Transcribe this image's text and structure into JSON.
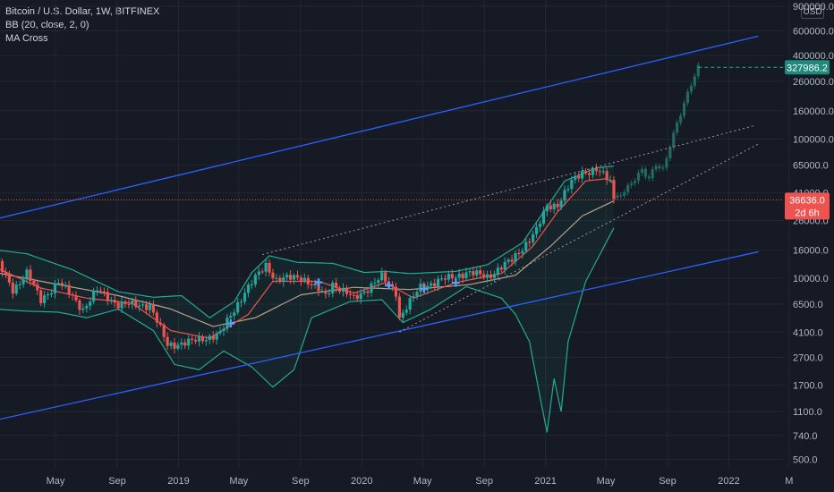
{
  "legend": {
    "symbol": "Bitcoin / U.S. Dollar, 1W, BITFINEX",
    "indicator1": "BB (20, close, 2, 0)",
    "indicator2": "MA Cross"
  },
  "currency_label": "USD",
  "colors": {
    "background": "#161a25",
    "up": "#26a69a",
    "down": "#ef5350",
    "bb": "#22ab94",
    "channel": "#2962ff",
    "ma_fast": "#ef5350",
    "ma_slow": "#b8a08a",
    "projection": "#1f6b62"
  },
  "chart_data": {
    "type": "candlestick",
    "scale": "log",
    "y_ticks": [
      "900000.0",
      "600000.0",
      "400000.0",
      "260000.0",
      "160000.0",
      "100000.0",
      "65000.0",
      "41000.0",
      "26000.0",
      "16000.0",
      "10000.0",
      "6500.0",
      "4100.0",
      "2700.0",
      "1700.0",
      "1100.0",
      "740.0",
      "500.0"
    ],
    "x_ticks": [
      "May",
      "Sep",
      "2019",
      "May",
      "Sep",
      "2020",
      "May",
      "Sep",
      "2021",
      "May",
      "Sep",
      "2022",
      "M"
    ],
    "ylim": [
      440,
      1000000
    ],
    "current_price": {
      "value": 36636.0,
      "label": "36636.0",
      "countdown": "2d 6h"
    },
    "projected_target": {
      "value": 327986.2,
      "label": "327986.2"
    },
    "anchors": [
      [
        "2018-01-01",
        14000
      ],
      [
        "2018-02-05",
        8200
      ],
      [
        "2018-03-05",
        11000
      ],
      [
        "2018-04-02",
        6900
      ],
      [
        "2018-05-07",
        9500
      ],
      [
        "2018-06-25",
        6000
      ],
      [
        "2018-07-23",
        8200
      ],
      [
        "2018-09-03",
        6500
      ],
      [
        "2018-11-05",
        6400
      ],
      [
        "2018-12-10",
        3300
      ],
      [
        "2019-01-28",
        3500
      ],
      [
        "2019-03-25",
        4000
      ],
      [
        "2019-05-13",
        8000
      ],
      [
        "2019-06-24",
        12500
      ],
      [
        "2019-07-15",
        9700
      ],
      [
        "2019-09-02",
        10300
      ],
      [
        "2019-10-21",
        7500
      ],
      [
        "2019-11-04",
        9200
      ],
      [
        "2019-12-16",
        7100
      ],
      [
        "2020-02-10",
        10200
      ],
      [
        "2020-03-09",
        8000
      ],
      [
        "2020-03-16",
        5200
      ],
      [
        "2020-04-27",
        8700
      ],
      [
        "2020-06-01",
        9500
      ],
      [
        "2020-07-27",
        11000
      ],
      [
        "2020-09-07",
        10300
      ],
      [
        "2020-10-26",
        13500
      ],
      [
        "2020-12-14",
        22000
      ],
      [
        "2021-01-04",
        33000
      ],
      [
        "2021-01-25",
        34000
      ],
      [
        "2021-02-22",
        49000
      ],
      [
        "2021-03-15",
        58000
      ],
      [
        "2021-04-12",
        60000
      ],
      [
        "2021-05-10",
        50000
      ],
      [
        "2021-05-17",
        37000
      ]
    ],
    "bb_upper": [
      [
        "2018-01-01",
        16000
      ],
      [
        "2018-03-05",
        15000
      ],
      [
        "2018-06-04",
        11500
      ],
      [
        "2018-09-03",
        8000
      ],
      [
        "2018-11-12",
        7300
      ],
      [
        "2019-01-07",
        7500
      ],
      [
        "2019-03-04",
        5200
      ],
      [
        "2019-04-22",
        6800
      ],
      [
        "2019-05-27",
        11000
      ],
      [
        "2019-07-01",
        14500
      ],
      [
        "2019-08-26",
        13000
      ],
      [
        "2019-11-04",
        12800
      ],
      [
        "2020-01-06",
        11000
      ],
      [
        "2020-02-17",
        11200
      ],
      [
        "2020-04-06",
        10800
      ],
      [
        "2020-07-06",
        11200
      ],
      [
        "2020-09-07",
        12500
      ],
      [
        "2020-11-16",
        18000
      ],
      [
        "2020-12-28",
        30000
      ],
      [
        "2021-02-08",
        50000
      ],
      [
        "2021-04-12",
        62000
      ],
      [
        "2021-05-17",
        64000
      ]
    ],
    "bb_lower": [
      [
        "2018-01-01",
        6000
      ],
      [
        "2018-03-05",
        5800
      ],
      [
        "2018-05-07",
        5700
      ],
      [
        "2018-07-02",
        5200
      ],
      [
        "2018-09-03",
        6000
      ],
      [
        "2018-11-12",
        4200
      ],
      [
        "2018-12-24",
        2400
      ],
      [
        "2019-02-11",
        2200
      ],
      [
        "2019-04-01",
        3000
      ],
      [
        "2019-05-27",
        2300
      ],
      [
        "2019-07-08",
        1650
      ],
      [
        "2019-08-19",
        2200
      ],
      [
        "2019-09-23",
        5200
      ],
      [
        "2019-12-09",
        6800
      ],
      [
        "2020-02-10",
        7000
      ],
      [
        "2020-03-23",
        4800
      ],
      [
        "2020-05-18",
        6000
      ],
      [
        "2020-07-27",
        8700
      ],
      [
        "2020-10-05",
        7200
      ],
      [
        "2020-11-02",
        5500
      ],
      [
        "2020-11-30",
        3500
      ],
      [
        "2020-12-21",
        1400
      ],
      [
        "2021-01-04",
        780
      ],
      [
        "2021-01-18",
        1900
      ],
      [
        "2021-02-01",
        1100
      ],
      [
        "2021-02-15",
        3500
      ],
      [
        "2021-03-22",
        9500
      ],
      [
        "2021-05-17",
        23000
      ]
    ],
    "ma_fast": [
      [
        "2018-01-01",
        12000
      ],
      [
        "2018-04-02",
        8500
      ],
      [
        "2018-07-02",
        7200
      ],
      [
        "2018-10-01",
        6600
      ],
      [
        "2018-12-17",
        4200
      ],
      [
        "2019-03-04",
        3700
      ],
      [
        "2019-05-20",
        5500
      ],
      [
        "2019-07-08",
        9500
      ],
      [
        "2019-10-07",
        9500
      ],
      [
        "2019-12-16",
        7800
      ],
      [
        "2020-02-17",
        9300
      ],
      [
        "2020-04-13",
        7200
      ],
      [
        "2020-07-06",
        9300
      ],
      [
        "2020-10-05",
        10800
      ],
      [
        "2020-12-07",
        17000
      ],
      [
        "2021-01-25",
        30000
      ],
      [
        "2021-03-22",
        50000
      ],
      [
        "2021-05-03",
        52000
      ],
      [
        "2021-05-17",
        48000
      ]
    ],
    "ma_slow": [
      [
        "2018-01-01",
        11000
      ],
      [
        "2018-05-07",
        9000
      ],
      [
        "2018-09-03",
        7500
      ],
      [
        "2018-12-17",
        6000
      ],
      [
        "2019-03-11",
        4500
      ],
      [
        "2019-06-03",
        5200
      ],
      [
        "2019-09-02",
        7600
      ],
      [
        "2019-12-16",
        8600
      ],
      [
        "2020-04-06",
        8300
      ],
      [
        "2020-08-03",
        9000
      ],
      [
        "2020-11-02",
        10500
      ],
      [
        "2021-01-11",
        17000
      ],
      [
        "2021-03-15",
        28000
      ],
      [
        "2021-05-17",
        36000
      ]
    ],
    "channel_upper": {
      "start": [
        "2017-12-01",
        25000
      ],
      "end": [
        "2022-03-01",
        550000
      ]
    },
    "channel_lower": {
      "start": [
        "2017-12-01",
        900
      ],
      "end": [
        "2022-03-01",
        15500
      ]
    },
    "trend_upper_dotted": {
      "start": [
        "2019-06-17",
        14800
      ],
      "end": [
        "2022-02-21",
        125000
      ]
    },
    "trend_lower_dotted": {
      "start": [
        "2020-03-16",
        4100
      ],
      "end": [
        "2022-02-28",
        92000
      ]
    },
    "projection": [
      [
        "2021-05-24",
        38000
      ],
      [
        "2021-06-14",
        45000
      ],
      [
        "2021-07-12",
        60000
      ],
      [
        "2021-07-26",
        52000
      ],
      [
        "2021-08-09",
        66000
      ],
      [
        "2021-08-23",
        60000
      ],
      [
        "2021-09-06",
        90000
      ],
      [
        "2021-09-20",
        130000
      ],
      [
        "2021-10-04",
        180000
      ],
      [
        "2021-10-18",
        250000
      ],
      [
        "2021-11-01",
        327986
      ]
    ]
  }
}
